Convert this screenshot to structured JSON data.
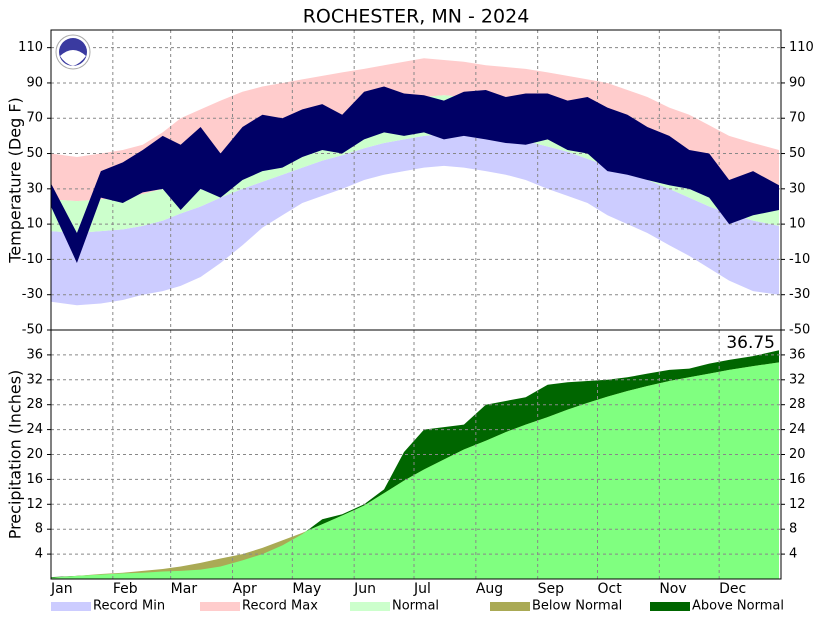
{
  "legend": [
    {
      "name": "Record Min",
      "color": "#ccccff"
    },
    {
      "name": "Record Max",
      "color": "#ffcccc"
    },
    {
      "name": "Normal",
      "color": "#ccffcc"
    },
    {
      "name": "Below Normal",
      "color": "#aaaa55"
    },
    {
      "name": "Above Normal",
      "color": "#006600"
    }
  ],
  "chart_data": [
    {
      "type": "temperature",
      "title": "ROCHESTER, MN - 2024",
      "ylabel": "Temperature (Deg F)",
      "observed_color": "#000066",
      "grid": true,
      "x": [
        1,
        14,
        26,
        37,
        47,
        57,
        66,
        76,
        86,
        97,
        107,
        117,
        127,
        137,
        147,
        158,
        168,
        178,
        188,
        198,
        208,
        219,
        229,
        239,
        250,
        260,
        270,
        280,
        290,
        300,
        311,
        321,
        331,
        341,
        353,
        366
      ],
      "xlim": [
        1,
        367
      ],
      "xticks": [
        {
          "value": 1,
          "label": "Jan"
        },
        {
          "value": 32,
          "label": "Feb"
        },
        {
          "value": 61,
          "label": "Mar"
        },
        {
          "value": 92,
          "label": "Apr"
        },
        {
          "value": 122,
          "label": "May"
        },
        {
          "value": 153,
          "label": "Jun"
        },
        {
          "value": 183,
          "label": "Jul"
        },
        {
          "value": 214,
          "label": "Aug"
        },
        {
          "value": 245,
          "label": "Sep"
        },
        {
          "value": 275,
          "label": "Oct"
        },
        {
          "value": 306,
          "label": "Nov"
        },
        {
          "value": 336,
          "label": "Dec"
        }
      ],
      "ylim": [
        -50,
        120
      ],
      "yticks": [
        -50,
        -30,
        -10,
        10,
        30,
        50,
        70,
        90,
        110
      ],
      "record_min": [
        -34,
        -36,
        -35,
        -33,
        -30,
        -28,
        -25,
        -20,
        -12,
        -2,
        8,
        15,
        22,
        26,
        30,
        35,
        38,
        40,
        42,
        43,
        42,
        40,
        38,
        35,
        30,
        26,
        22,
        15,
        10,
        5,
        -2,
        -8,
        -15,
        -22,
        -28,
        -30
      ],
      "record_max": [
        50,
        48,
        50,
        52,
        55,
        62,
        70,
        75,
        80,
        85,
        88,
        90,
        92,
        94,
        96,
        98,
        100,
        102,
        104,
        103,
        102,
        100,
        99,
        98,
        96,
        94,
        92,
        90,
        86,
        82,
        76,
        72,
        66,
        60,
        56,
        52
      ],
      "normal_low": [
        6,
        5,
        6,
        7,
        9,
        12,
        16,
        20,
        25,
        30,
        34,
        38,
        42,
        46,
        49,
        53,
        56,
        58,
        60,
        61,
        61,
        60,
        59,
        57,
        54,
        51,
        47,
        43,
        39,
        35,
        30,
        25,
        20,
        16,
        12,
        9
      ],
      "normal_high": [
        24,
        23,
        24,
        25,
        27,
        30,
        34,
        38,
        43,
        50,
        55,
        60,
        65,
        69,
        72,
        75,
        78,
        80,
        82,
        83,
        82,
        82,
        81,
        79,
        77,
        74,
        71,
        67,
        63,
        58,
        52,
        46,
        40,
        34,
        30,
        26
      ],
      "observed_low": [
        20,
        -12,
        25,
        22,
        28,
        30,
        18,
        30,
        25,
        35,
        40,
        42,
        48,
        52,
        50,
        58,
        62,
        60,
        62,
        58,
        60,
        58,
        56,
        55,
        58,
        52,
        50,
        40,
        38,
        35,
        32,
        30,
        25,
        10,
        15,
        18
      ],
      "observed_high": [
        33,
        5,
        40,
        45,
        52,
        60,
        55,
        65,
        50,
        65,
        72,
        70,
        75,
        78,
        72,
        85,
        88,
        84,
        83,
        80,
        85,
        86,
        82,
        84,
        84,
        80,
        82,
        76,
        72,
        65,
        60,
        52,
        50,
        35,
        40,
        32
      ]
    },
    {
      "type": "precipitation",
      "ylabel": "Precipitation (Inches)",
      "annotation": "36.75",
      "normal_color": "#80ff80",
      "grid": true,
      "x": [
        1,
        14,
        26,
        37,
        47,
        57,
        66,
        76,
        86,
        97,
        107,
        117,
        127,
        137,
        147,
        158,
        168,
        178,
        188,
        198,
        208,
        219,
        229,
        239,
        250,
        260,
        270,
        280,
        290,
        300,
        311,
        321,
        331,
        341,
        353,
        366
      ],
      "xlim": [
        1,
        367
      ],
      "xticks": [
        {
          "value": 1,
          "label": "Jan"
        },
        {
          "value": 32,
          "label": "Feb"
        },
        {
          "value": 61,
          "label": "Mar"
        },
        {
          "value": 92,
          "label": "Apr"
        },
        {
          "value": 122,
          "label": "May"
        },
        {
          "value": 153,
          "label": "Jun"
        },
        {
          "value": 183,
          "label": "Jul"
        },
        {
          "value": 214,
          "label": "Aug"
        },
        {
          "value": 245,
          "label": "Sep"
        },
        {
          "value": 275,
          "label": "Oct"
        },
        {
          "value": 306,
          "label": "Nov"
        },
        {
          "value": 336,
          "label": "Dec"
        }
      ],
      "ylim": [
        0,
        40
      ],
      "yticks": [
        4,
        8,
        12,
        16,
        20,
        24,
        28,
        32,
        36
      ],
      "normal": [
        0.2,
        0.5,
        0.8,
        1.0,
        1.3,
        1.6,
        2.0,
        2.6,
        3.3,
        4.0,
        5.0,
        6.2,
        7.4,
        8.8,
        10.2,
        11.8,
        13.8,
        15.8,
        17.6,
        19.2,
        20.8,
        22.2,
        23.6,
        24.8,
        26.0,
        27.2,
        28.3,
        29.3,
        30.2,
        31.0,
        31.8,
        32.4,
        33.0,
        33.6,
        34.2,
        34.8
      ],
      "observed": [
        0.3,
        0.5,
        0.7,
        0.9,
        1.0,
        1.2,
        1.3,
        1.5,
        2.0,
        3.0,
        4.0,
        5.4,
        7.2,
        9.6,
        10.4,
        12.0,
        14.4,
        20.4,
        24.0,
        24.4,
        24.8,
        28.0,
        28.6,
        29.2,
        31.2,
        31.6,
        31.8,
        32.0,
        32.4,
        33.0,
        33.6,
        33.8,
        34.6,
        35.2,
        35.8,
        36.75
      ]
    }
  ]
}
